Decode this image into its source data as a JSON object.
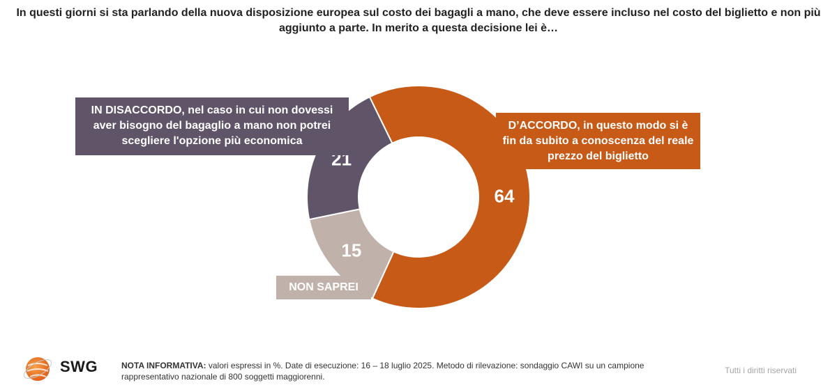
{
  "question": "In questi giorni si sta parlando della nuova disposizione europea sul costo dei bagagli a mano, che deve essere incluso nel costo del biglietto e non più aggiunto a parte. In merito a questa decisione lei è…",
  "chart_data": {
    "type": "pie",
    "variant": "donut",
    "unit": "%",
    "slices": [
      {
        "label": "D’ACCORDO, in questo modo si è fin da subito a conoscenza del reale prezzo del biglietto",
        "value": 64,
        "color": "#c85a17"
      },
      {
        "label": "NON SAPREI",
        "value": 15,
        "color": "#c0b2aa"
      },
      {
        "label": "IN DISACCORDO, nel caso in cui non dovessi aver bisogno del bagaglio a mano non potrei scegliere l'opzione più economica",
        "value": 21,
        "color": "#5f5468"
      }
    ]
  },
  "callouts": {
    "disagree": "IN DISACCORDO, nel caso in cui non dovessi aver bisogno del bagaglio a mano non potrei scegliere l'opzione più economica",
    "agree": "D’ACCORDO, in questo modo si è fin da subito a conoscenza del reale prezzo del biglietto",
    "unsure": "NON SAPREI"
  },
  "footer": {
    "brand": "SWG",
    "note_label": "NOTA INFORMATIVA:",
    "note_text": " valori espressi in %. Date di esecuzione: 16 – 18 luglio 2025. Metodo di rilevazione: sondaggio CAWI su un campione rappresentativo nazionale di 800 soggetti maggiorenni.",
    "rights": "Tutti i diritti riservati"
  }
}
